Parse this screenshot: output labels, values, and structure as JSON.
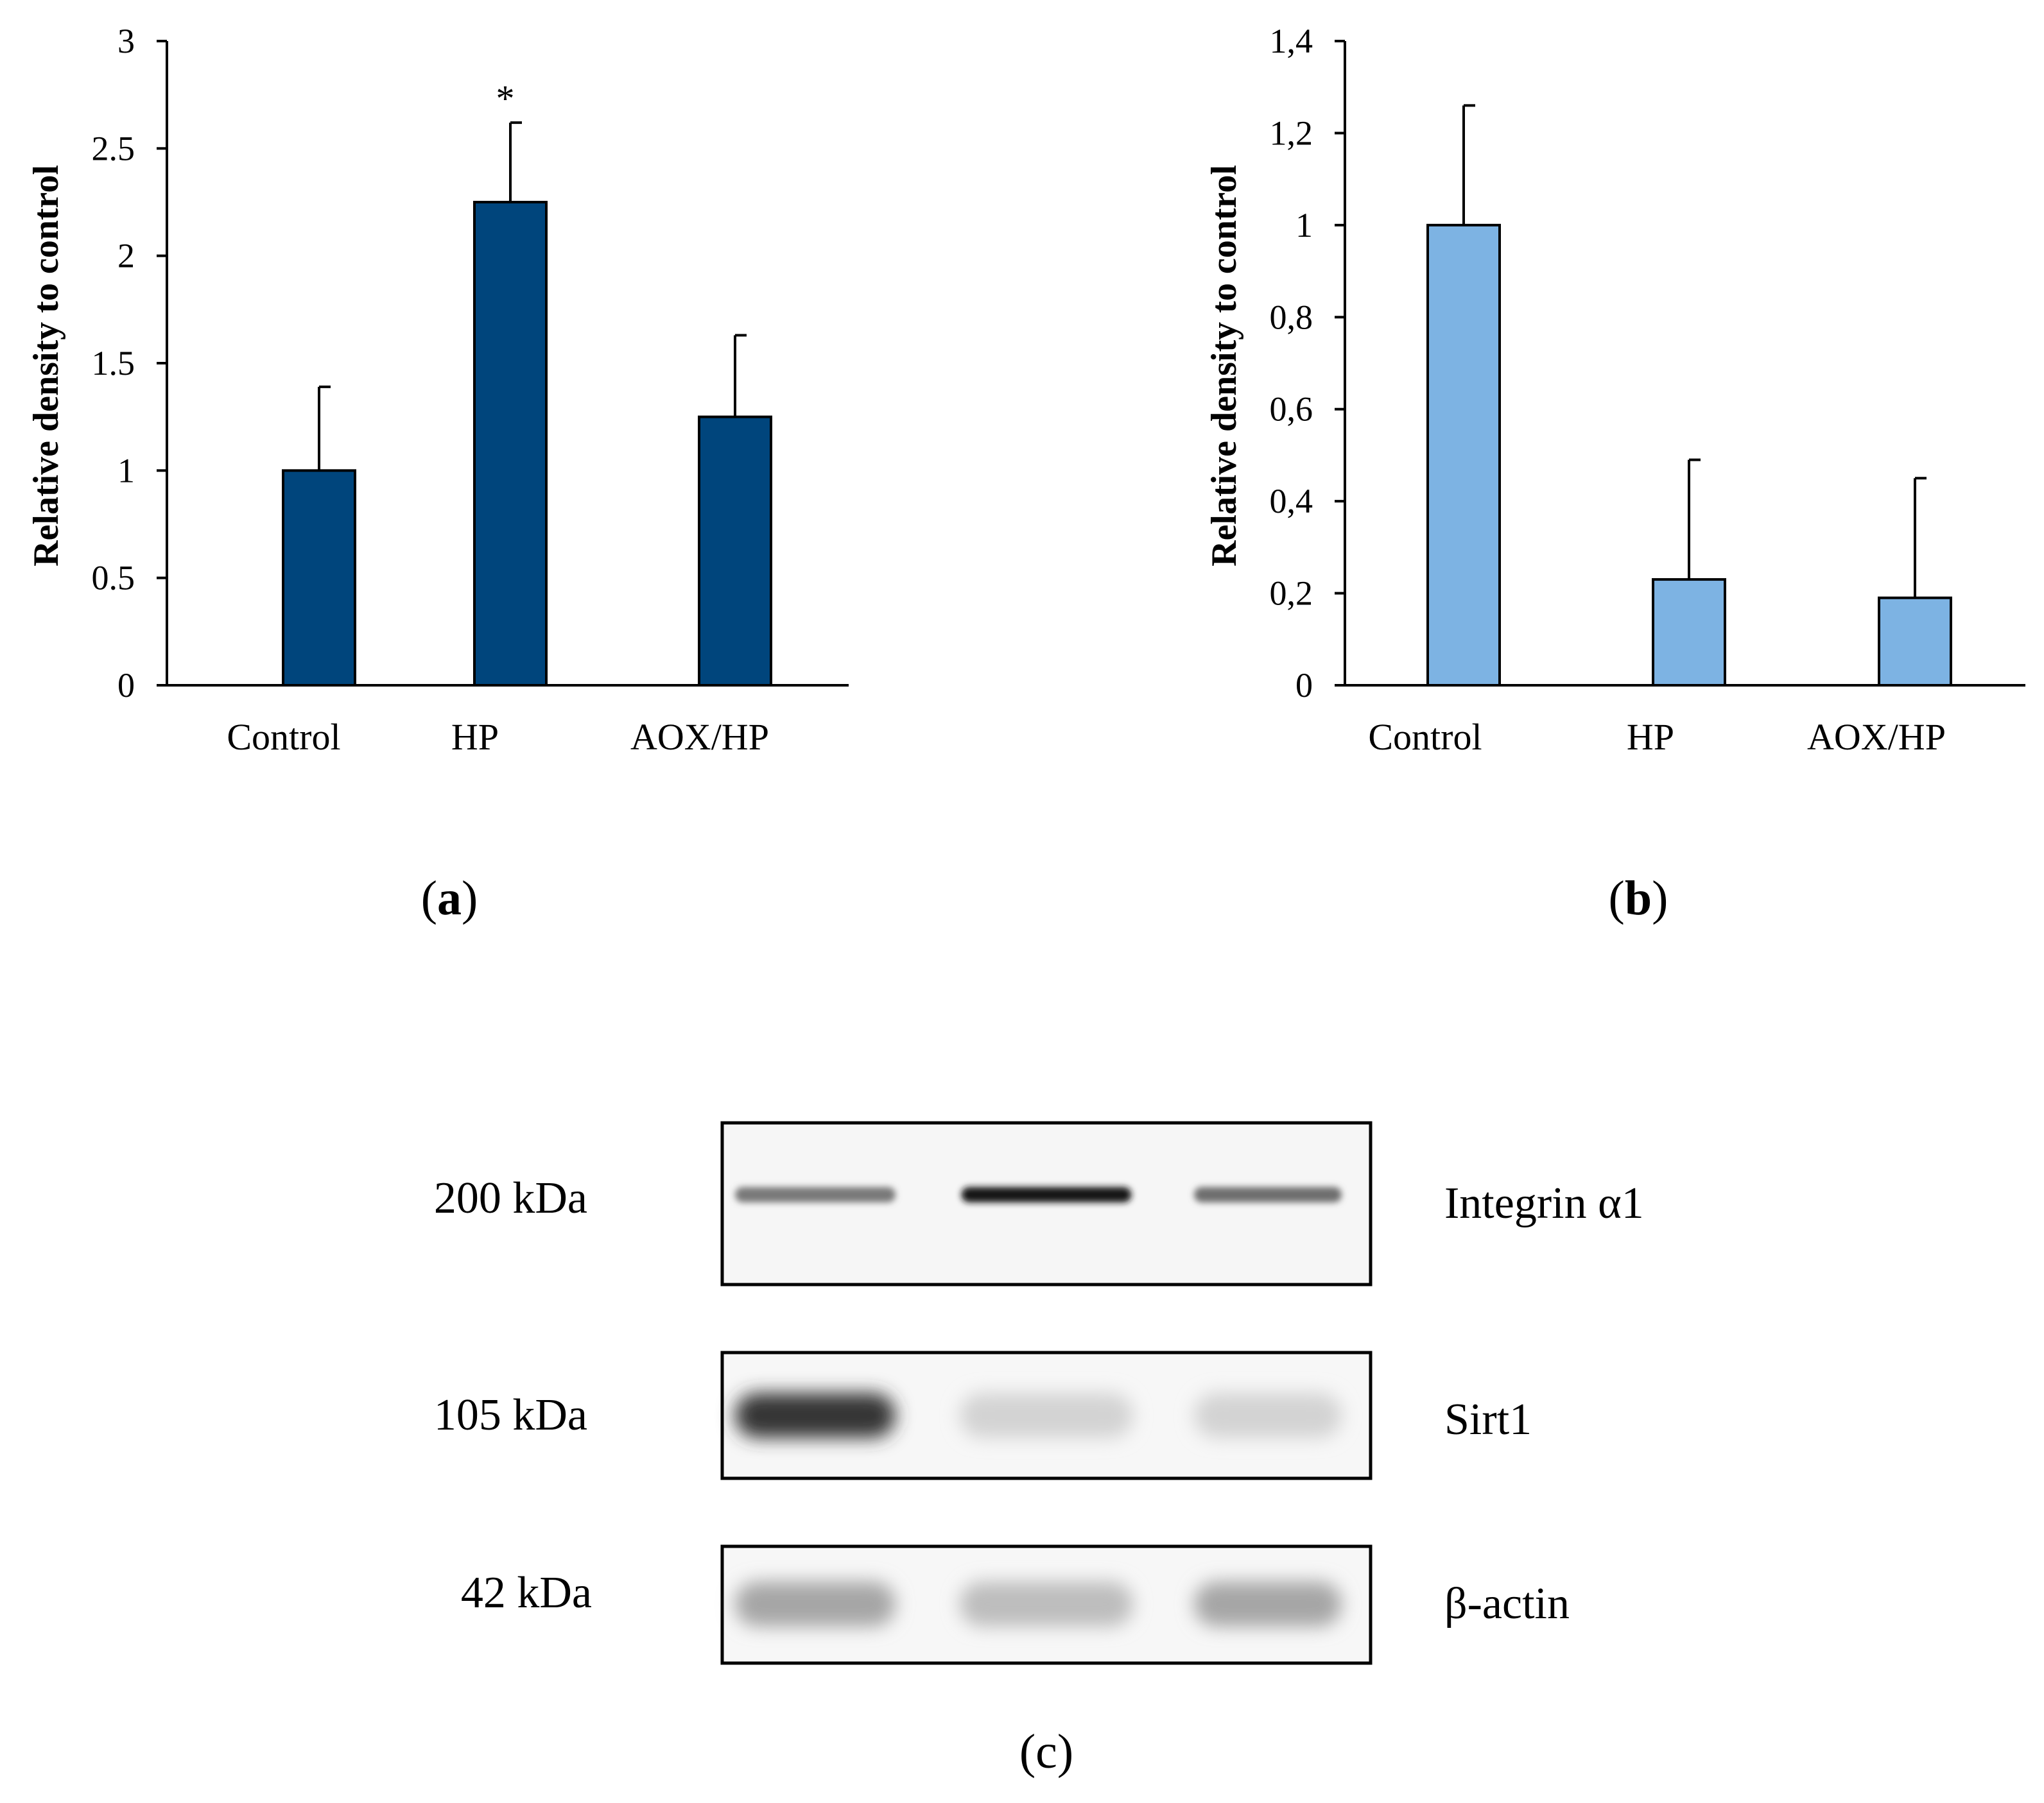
{
  "chart_data": [
    {
      "type": "bar",
      "panel_label": "(a)",
      "panel_letter": "a",
      "categories": [
        "Control",
        "HP",
        "AOX/HP"
      ],
      "values": [
        1.0,
        2.25,
        1.25
      ],
      "errors": [
        0.39,
        0.37,
        0.38
      ],
      "annotations": [
        "",
        "*",
        ""
      ],
      "ylabel": "Relative  density  to control",
      "ylim": [
        0,
        3
      ],
      "yticks": [
        "0",
        "0.5",
        "1",
        "1.5",
        "2",
        "2.5",
        "3"
      ],
      "ytick_values": [
        0,
        0.5,
        1,
        1.5,
        2,
        2.5,
        3
      ],
      "bar_color": "#00457c",
      "grid": false,
      "legend": "none"
    },
    {
      "type": "bar",
      "panel_label": "(b)",
      "panel_letter": "b",
      "categories": [
        "Control",
        "HP",
        "AOX/HP"
      ],
      "values": [
        1.0,
        0.23,
        0.19
      ],
      "errors": [
        0.26,
        0.26,
        0.26
      ],
      "annotations": [
        "",
        "",
        ""
      ],
      "ylabel": "Relative  density  to control",
      "ylim": [
        0,
        1.4
      ],
      "yticks": [
        "0",
        "0,2",
        "0,4",
        "0,6",
        "0,8",
        "1",
        "1,2",
        "1,4"
      ],
      "ytick_values": [
        0,
        0.2,
        0.4,
        0.6,
        0.8,
        1,
        1.2,
        1.4
      ],
      "bar_color": "#7db3e3",
      "grid": false,
      "legend": "none"
    }
  ],
  "blot": {
    "panel_label": "(c)",
    "rows": [
      {
        "size": "200 kDa",
        "protein": "Integrin α1",
        "intensities": [
          0.55,
          1.0,
          0.6
        ]
      },
      {
        "size": "105 kDa",
        "protein": "Sirt1",
        "intensities": [
          0.85,
          0.15,
          0.15
        ]
      },
      {
        "size": "42 kDa",
        "protein": "β-actin",
        "intensities": [
          0.35,
          0.25,
          0.35
        ]
      }
    ]
  }
}
